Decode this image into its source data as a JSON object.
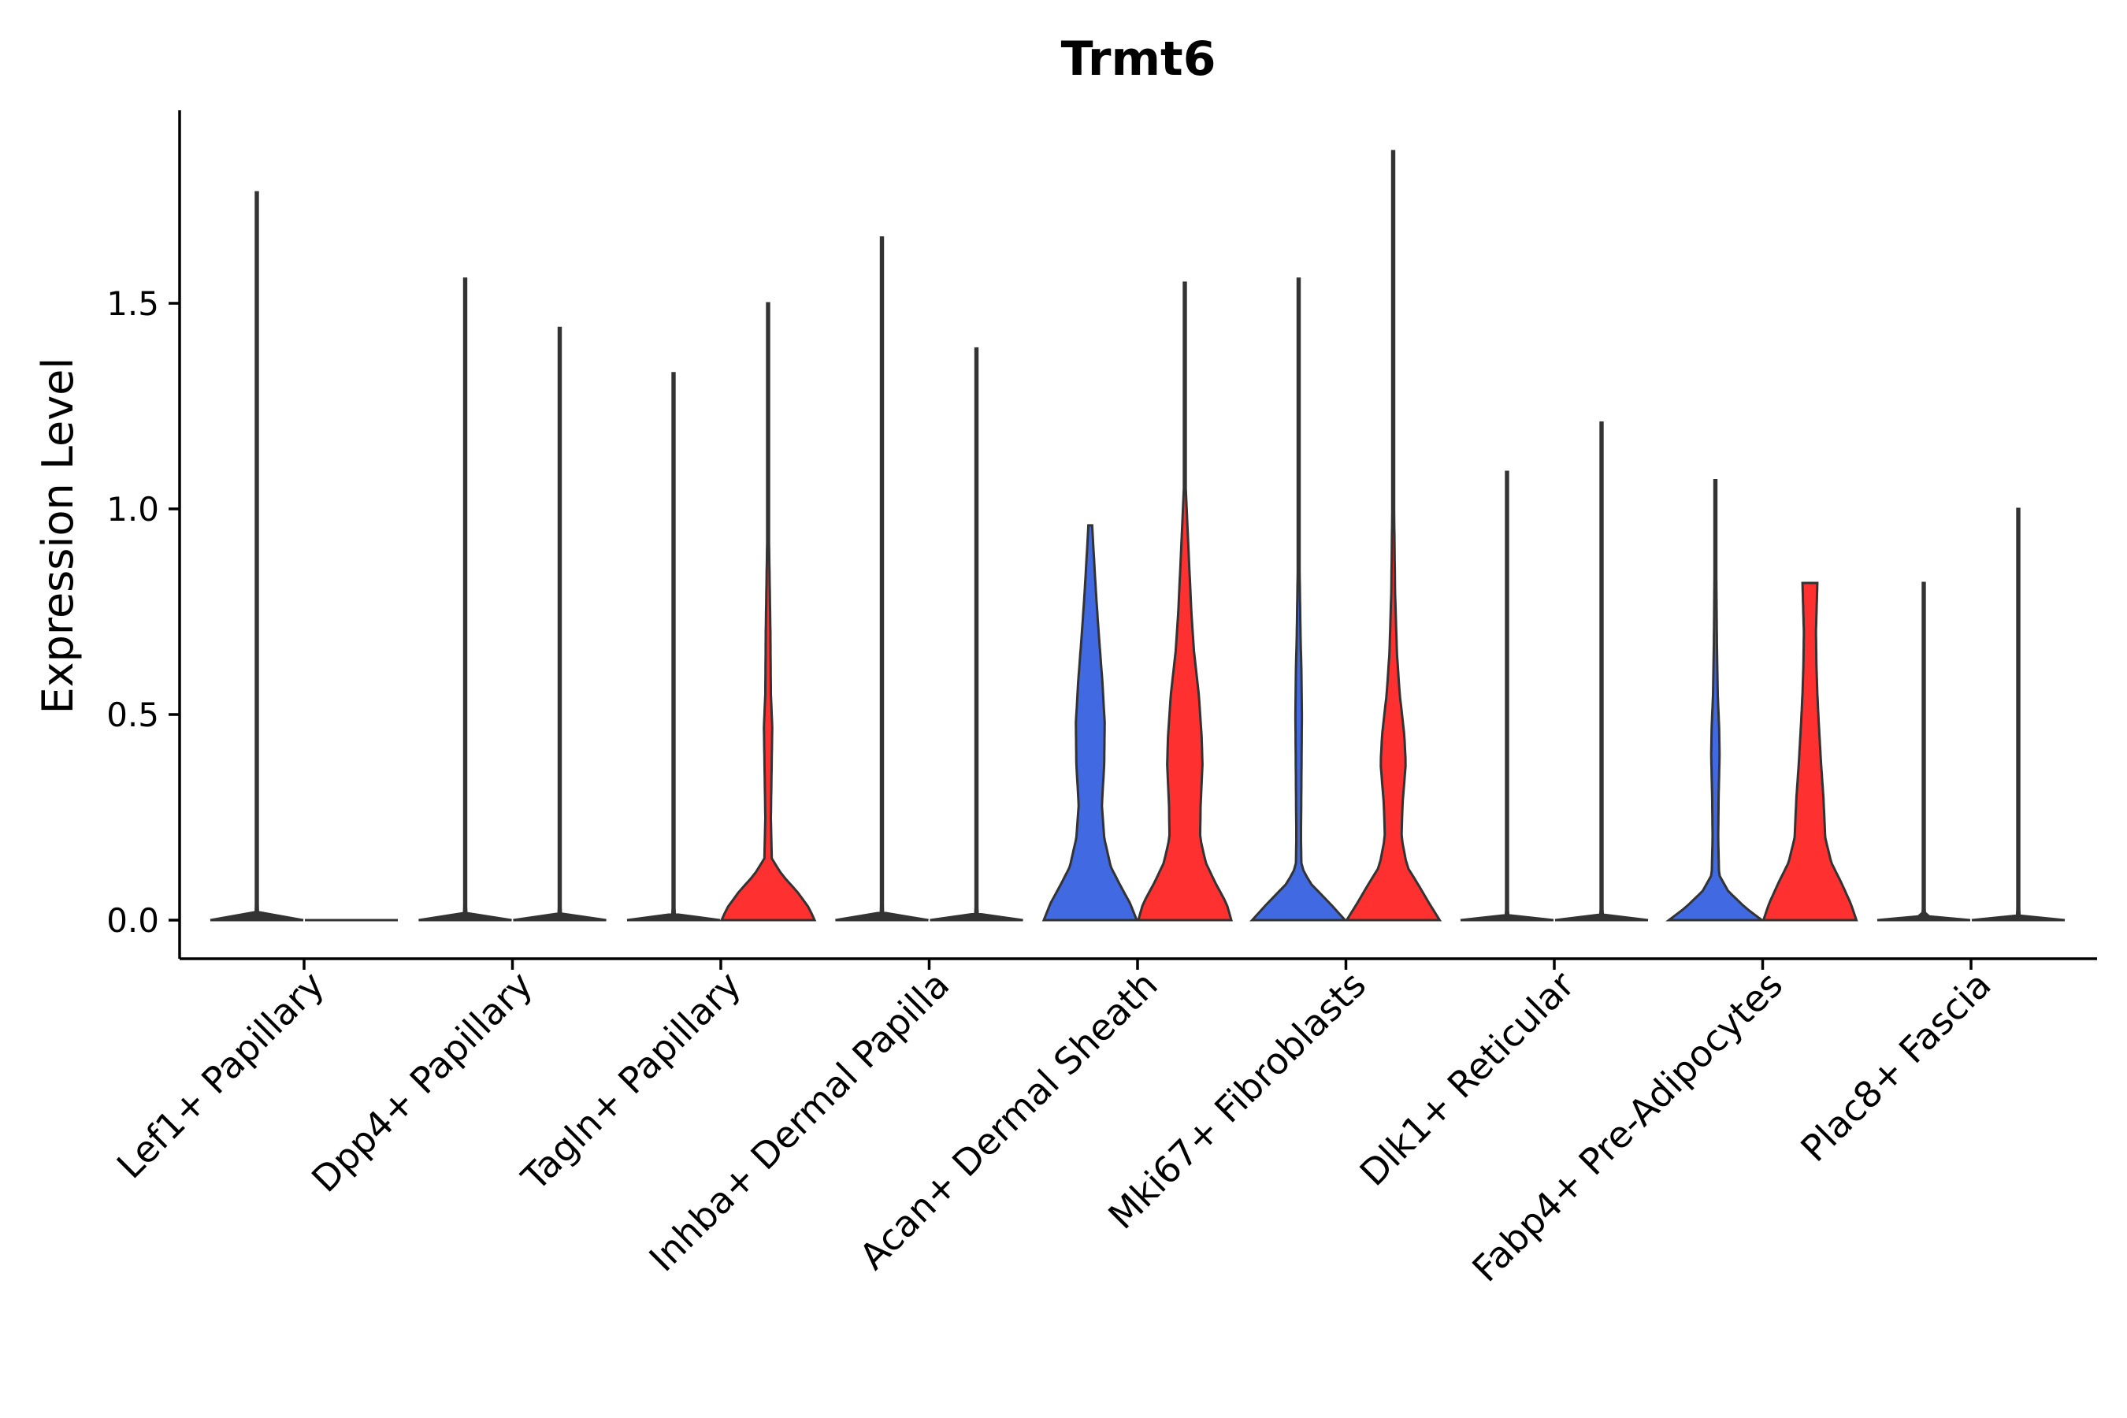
{
  "chart_data": {
    "type": "violin",
    "title": "Trmt6",
    "xlabel": "",
    "ylabel": "Expression Level",
    "ylim": [
      -0.09,
      1.96
    ],
    "yticks": [
      0.0,
      0.5,
      1.0,
      1.5
    ],
    "ytick_labels": [
      "0.0",
      "0.5",
      "1.0",
      "1.5"
    ],
    "legend": "none",
    "grid": false,
    "colors": {
      "group_a": "#4169E1",
      "group_b": "#FF3030",
      "outline": "#333333"
    },
    "categories": [
      "Lef1+ Papillary",
      "Dpp4+ Papillary",
      "Tagln+ Papillary",
      "Inhba+ Dermal Papilla",
      "Acan+ Dermal Sheath",
      "Mki67+ Fibroblasts",
      "Dlk1+ Reticular",
      "Fabp4+ Pre-Adipocytes",
      "Plac8+ Fascia"
    ],
    "violins": [
      {
        "category": "Lef1+ Papillary",
        "group": "a",
        "color": "#4169E1",
        "filled": false,
        "max": 1.77,
        "profile": [
          [
            0,
            1
          ],
          [
            0.01,
            0.03
          ],
          [
            0.05,
            0.004
          ],
          [
            1.77,
            0.002
          ]
        ]
      },
      {
        "category": "Lef1+ Papillary",
        "group": "b",
        "color": "#FF3030",
        "filled": false,
        "max": 0,
        "profile": [
          [
            0,
            1
          ]
        ]
      },
      {
        "category": "Dpp4+ Papillary",
        "group": "a",
        "color": "#4169E1",
        "filled": false,
        "max": 1.56,
        "profile": [
          [
            0,
            1
          ],
          [
            0.01,
            0.03
          ],
          [
            0.05,
            0.004
          ],
          [
            1.56,
            0.002
          ]
        ]
      },
      {
        "category": "Dpp4+ Papillary",
        "group": "b",
        "color": "#FF3030",
        "filled": false,
        "max": 1.44,
        "profile": [
          [
            0,
            1
          ],
          [
            0.01,
            0.03
          ],
          [
            0.05,
            0.004
          ],
          [
            1.44,
            0.002
          ]
        ]
      },
      {
        "category": "Tagln+ Papillary",
        "group": "a",
        "color": "#4169E1",
        "filled": false,
        "max": 1.33,
        "profile": [
          [
            0,
            1
          ],
          [
            0.01,
            0.03
          ],
          [
            0.05,
            0.004
          ],
          [
            1.33,
            0.002
          ]
        ]
      },
      {
        "category": "Tagln+ Papillary",
        "group": "b",
        "color": "#FF3030",
        "filled": true,
        "max": 1.5,
        "profile": [
          [
            0,
            1
          ],
          [
            0.03,
            0.88
          ],
          [
            0.07,
            0.62
          ],
          [
            0.11,
            0.3
          ],
          [
            0.15,
            0.08
          ],
          [
            0.25,
            0.06
          ],
          [
            0.4,
            0.08
          ],
          [
            0.47,
            0.09
          ],
          [
            0.55,
            0.06
          ],
          [
            0.7,
            0.05
          ],
          [
            0.85,
            0.03
          ],
          [
            1.0,
            0.01
          ],
          [
            1.5,
            0.002
          ]
        ]
      },
      {
        "category": "Inhba+ Dermal Papilla",
        "group": "a",
        "color": "#4169E1",
        "filled": false,
        "max": 1.66,
        "profile": [
          [
            0,
            1
          ],
          [
            0.01,
            0.03
          ],
          [
            0.05,
            0.004
          ],
          [
            1.66,
            0.002
          ]
        ]
      },
      {
        "category": "Inhba+ Dermal Papilla",
        "group": "b",
        "color": "#FF3030",
        "filled": false,
        "max": 1.39,
        "profile": [
          [
            0,
            1
          ],
          [
            0.01,
            0.03
          ],
          [
            0.05,
            0.004
          ],
          [
            1.39,
            0.002
          ]
        ]
      },
      {
        "category": "Acan+ Dermal Sheath",
        "group": "a",
        "color": "#4169E1",
        "filled": true,
        "max": 0.96,
        "profile": [
          [
            0,
            1
          ],
          [
            0.04,
            0.86
          ],
          [
            0.09,
            0.62
          ],
          [
            0.13,
            0.44
          ],
          [
            0.2,
            0.3
          ],
          [
            0.28,
            0.25
          ],
          [
            0.38,
            0.3
          ],
          [
            0.48,
            0.31
          ],
          [
            0.58,
            0.26
          ],
          [
            0.7,
            0.18
          ],
          [
            0.8,
            0.12
          ],
          [
            0.9,
            0.07
          ],
          [
            0.96,
            0.04
          ]
        ]
      },
      {
        "category": "Acan+ Dermal Sheath",
        "group": "b",
        "color": "#FF3030",
        "filled": true,
        "max": 1.55,
        "profile": [
          [
            0,
            1
          ],
          [
            0.04,
            0.9
          ],
          [
            0.09,
            0.66
          ],
          [
            0.14,
            0.45
          ],
          [
            0.2,
            0.33
          ],
          [
            0.28,
            0.34
          ],
          [
            0.38,
            0.38
          ],
          [
            0.45,
            0.36
          ],
          [
            0.55,
            0.3
          ],
          [
            0.65,
            0.2
          ],
          [
            0.75,
            0.14
          ],
          [
            0.85,
            0.1
          ],
          [
            0.95,
            0.06
          ],
          [
            1.05,
            0.02
          ],
          [
            1.55,
            0.003
          ]
        ]
      },
      {
        "category": "Mki67+ Fibroblasts",
        "group": "a",
        "color": "#4169E1",
        "filled": true,
        "max": 1.56,
        "profile": [
          [
            0,
            1
          ],
          [
            0.04,
            0.68
          ],
          [
            0.09,
            0.25
          ],
          [
            0.13,
            0.06
          ],
          [
            0.2,
            0.05
          ],
          [
            0.35,
            0.06
          ],
          [
            0.5,
            0.07
          ],
          [
            0.6,
            0.06
          ],
          [
            0.7,
            0.04
          ],
          [
            0.85,
            0.02
          ],
          [
            1.0,
            0.01
          ],
          [
            1.56,
            0.002
          ]
        ]
      },
      {
        "category": "Mki67+ Fibroblasts",
        "group": "b",
        "color": "#FF3030",
        "filled": true,
        "max": 1.87,
        "profile": [
          [
            0,
            1
          ],
          [
            0.04,
            0.78
          ],
          [
            0.09,
            0.52
          ],
          [
            0.13,
            0.3
          ],
          [
            0.2,
            0.18
          ],
          [
            0.28,
            0.2
          ],
          [
            0.38,
            0.27
          ],
          [
            0.45,
            0.24
          ],
          [
            0.55,
            0.14
          ],
          [
            0.65,
            0.08
          ],
          [
            0.8,
            0.04
          ],
          [
            1.0,
            0.02
          ],
          [
            1.3,
            0.01
          ],
          [
            1.87,
            0.002
          ]
        ]
      },
      {
        "category": "Dlk1+ Reticular",
        "group": "a",
        "color": "#4169E1",
        "filled": false,
        "max": 1.09,
        "profile": [
          [
            0,
            1
          ],
          [
            0.01,
            0.03
          ],
          [
            0.05,
            0.004
          ],
          [
            1.09,
            0.002
          ]
        ]
      },
      {
        "category": "Dlk1+ Reticular",
        "group": "b",
        "color": "#FF3030",
        "filled": false,
        "max": 1.21,
        "profile": [
          [
            0,
            1
          ],
          [
            0.01,
            0.03
          ],
          [
            0.05,
            0.004
          ],
          [
            1.21,
            0.002
          ]
        ]
      },
      {
        "category": "Fabp4+ Pre-Adipocytes",
        "group": "a",
        "color": "#4169E1",
        "filled": true,
        "max": 1.07,
        "profile": [
          [
            0,
            1
          ],
          [
            0.03,
            0.65
          ],
          [
            0.07,
            0.28
          ],
          [
            0.11,
            0.08
          ],
          [
            0.2,
            0.06
          ],
          [
            0.3,
            0.07
          ],
          [
            0.4,
            0.09
          ],
          [
            0.47,
            0.08
          ],
          [
            0.55,
            0.05
          ],
          [
            0.7,
            0.03
          ],
          [
            0.85,
            0.02
          ],
          [
            1.07,
            0.002
          ]
        ]
      },
      {
        "category": "Fabp4+ Pre-Adipocytes",
        "group": "b",
        "color": "#FF3030",
        "filled": true,
        "max": 0.82,
        "profile": [
          [
            0,
            1
          ],
          [
            0.04,
            0.88
          ],
          [
            0.09,
            0.68
          ],
          [
            0.14,
            0.46
          ],
          [
            0.2,
            0.33
          ],
          [
            0.3,
            0.29
          ],
          [
            0.38,
            0.24
          ],
          [
            0.48,
            0.19
          ],
          [
            0.55,
            0.16
          ],
          [
            0.62,
            0.14
          ],
          [
            0.7,
            0.13
          ],
          [
            0.78,
            0.15
          ],
          [
            0.82,
            0.16
          ]
        ]
      },
      {
        "category": "Plac8+ Fascia",
        "group": "a",
        "color": "#4169E1",
        "filled": false,
        "max": 0.82,
        "profile": [
          [
            0,
            1
          ],
          [
            0.01,
            0.03
          ],
          [
            0.05,
            0.004
          ],
          [
            0.82,
            0.002
          ]
        ]
      },
      {
        "category": "Plac8+ Fascia",
        "group": "b",
        "color": "#FF3030",
        "filled": false,
        "max": 1.0,
        "profile": [
          [
            0,
            1
          ],
          [
            0.01,
            0.03
          ],
          [
            0.05,
            0.004
          ],
          [
            1.0,
            0.002
          ]
        ]
      }
    ]
  }
}
